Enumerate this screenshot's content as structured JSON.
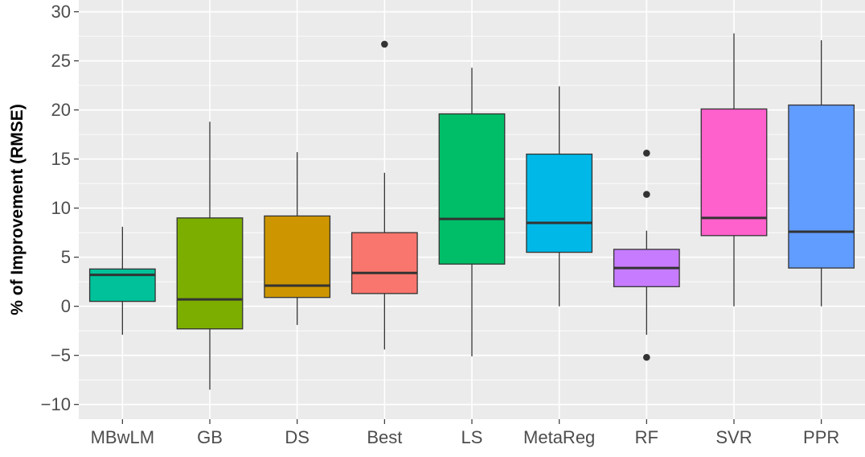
{
  "chart_data": {
    "type": "boxplot",
    "title": "",
    "xlabel": "",
    "ylabel": "% of Improvement (RMSE)",
    "ylim": [
      -11.5,
      31.2
    ],
    "y_ticks": [
      -10,
      -5,
      0,
      5,
      10,
      15,
      20,
      25,
      30
    ],
    "y_tick_labels": [
      "−10",
      "−5",
      "0",
      "5",
      "10",
      "15",
      "20",
      "25",
      "30"
    ],
    "grid": true,
    "legend": "none",
    "panel_background": "#ebebeb",
    "grid_color": "#ffffff",
    "categories": [
      "MBwLM",
      "GB",
      "DS",
      "Best",
      "LS",
      "MetaReg",
      "RF",
      "SVR",
      "PPR"
    ],
    "boxes": [
      {
        "category": "MBwLM",
        "whisker_low": -2.9,
        "q1": 0.5,
        "median": 3.2,
        "q3": 3.8,
        "whisker_high": 8.1,
        "outliers": [],
        "color": "#00C19A"
      },
      {
        "category": "GB",
        "whisker_low": -8.5,
        "q1": -2.3,
        "median": 0.7,
        "q3": 9.0,
        "whisker_high": 18.8,
        "outliers": [],
        "color": "#7CAE00"
      },
      {
        "category": "DS",
        "whisker_low": -1.9,
        "q1": 0.9,
        "median": 2.1,
        "q3": 9.2,
        "whisker_high": 15.7,
        "outliers": [],
        "color": "#CD9600"
      },
      {
        "category": "Best",
        "whisker_low": -4.4,
        "q1": 1.3,
        "median": 3.4,
        "q3": 7.5,
        "whisker_high": 13.6,
        "outliers": [
          26.7
        ],
        "color": "#F8766D"
      },
      {
        "category": "LS",
        "whisker_low": -5.1,
        "q1": 4.3,
        "median": 8.9,
        "q3": 19.6,
        "whisker_high": 24.3,
        "outliers": [],
        "color": "#00BE67"
      },
      {
        "category": "MetaReg",
        "whisker_low": 0.0,
        "q1": 5.5,
        "median": 8.5,
        "q3": 15.5,
        "whisker_high": 22.4,
        "outliers": [],
        "color": "#00B8E7"
      },
      {
        "category": "RF",
        "whisker_low": -2.9,
        "q1": 2.0,
        "median": 3.9,
        "q3": 5.8,
        "whisker_high": 7.7,
        "outliers": [
          15.6,
          11.4,
          -5.2
        ],
        "color": "#C77CFF"
      },
      {
        "category": "SVR",
        "whisker_low": 0.0,
        "q1": 7.2,
        "median": 9.0,
        "q3": 20.1,
        "whisker_high": 27.8,
        "outliers": [],
        "color": "#FF61CC"
      },
      {
        "category": "PPR",
        "whisker_low": 0.0,
        "q1": 3.9,
        "median": 7.6,
        "q3": 20.5,
        "whisker_high": 27.1,
        "outliers": [],
        "color": "#619CFF"
      }
    ]
  }
}
